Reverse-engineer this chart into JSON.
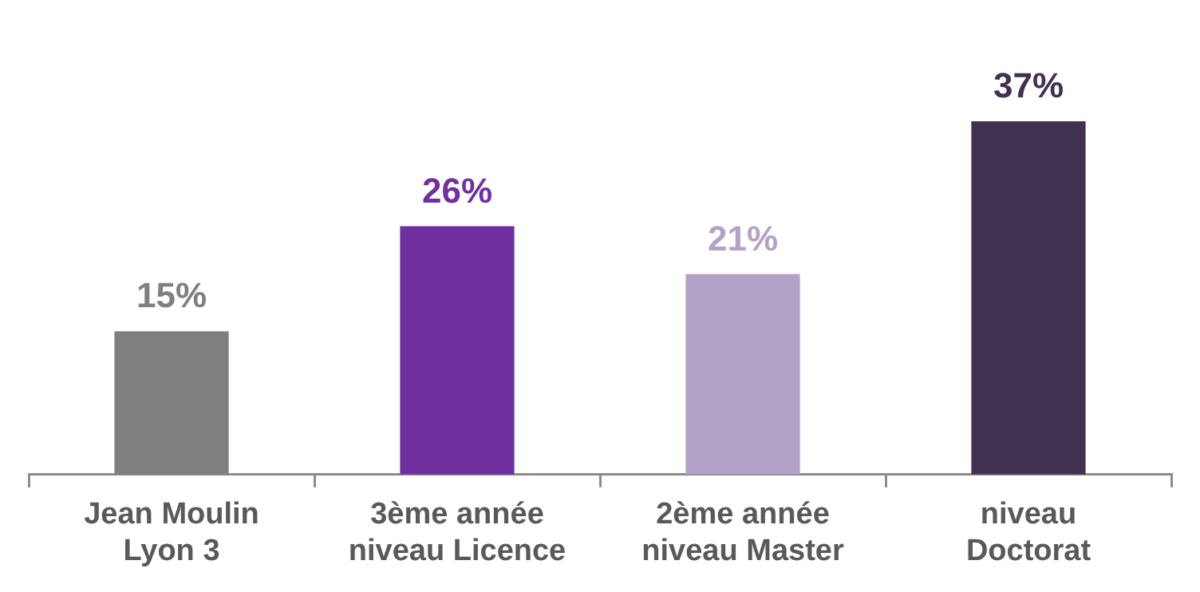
{
  "chart_data": {
    "type": "bar",
    "categories": [
      "Jean Moulin Lyon 3",
      "3ème année niveau Licence",
      "2ème année niveau Master",
      "niveau Doctorat"
    ],
    "values": [
      15,
      26,
      21,
      37
    ],
    "colors": [
      "#7f7f7f",
      "#7030a0",
      "#b3a2c7",
      "#403151"
    ],
    "value_labels": [
      "15%",
      "26%",
      "21%",
      "37%"
    ],
    "grid": false,
    "legend": false
  }
}
